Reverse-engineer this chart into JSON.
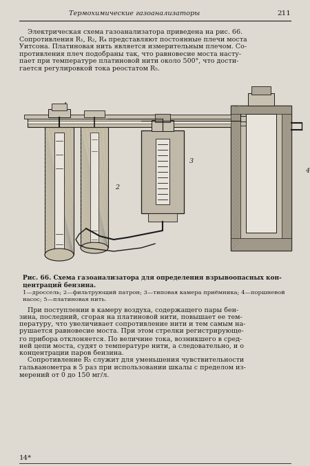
{
  "page_color": "#dedad2",
  "text_color": "#1c1c1c",
  "header_text": "Термохимические газоанализаторы",
  "header_page": "211",
  "para1_lines": [
    "    Электрическая схема газоанализатора приведена на рис. 66.",
    "Сопротивления R₁, R₂, R₄ представляют постоянные плечи моста",
    "Уитсона. Платиновая нить является измерительным плечом. Со-",
    "противления плеч подобраны так, что равновесие моста насту-",
    "пает при температуре платиновой нити около 500°, что дости-",
    "гается регулировкой тока реостатом R₅."
  ],
  "fig_cap1": "Рис. 66. Схема газоанализатора для определения взрывоопасных кон-",
  "fig_cap2": "центраций бензина.",
  "fig_cap3": "1—дроссель; 2—фильтрующий патрон; 3—типовая камера приёмника; 4—поршневой",
  "fig_cap4": "насос; 5—платиновая нить.",
  "para2_lines": [
    "    При поступлении в камеру воздуха, содержащего пары бен-",
    "зина, последний, сгорая на платиновой нити, повышает ее тем-",
    "пературу, что увеличивает сопротивление нити и тем самым на-",
    "рушается равновесие моста. При этом стрелки регистрирующе-",
    "го прибора отклоняется. По величине тока, возникшего в сред-",
    "ней цепи моста, судят о температуре нити, а следовательно, и о",
    "концентрации паров бензина."
  ],
  "para3_lines": [
    "    Сопротивление R₅ служит для уменьшения чувствительности",
    "гальванометра в 5 раз при использовании шкалы с пределом из-",
    "мерений от 0 до 150 мг/л."
  ],
  "footer_num": "14*",
  "lc": "#222222",
  "fill_dark": "#b0a898",
  "fill_mid": "#c8c0b0",
  "fill_light": "#ddd8cc",
  "fill_white": "#e8e4dc",
  "hatch_color": "#888880"
}
